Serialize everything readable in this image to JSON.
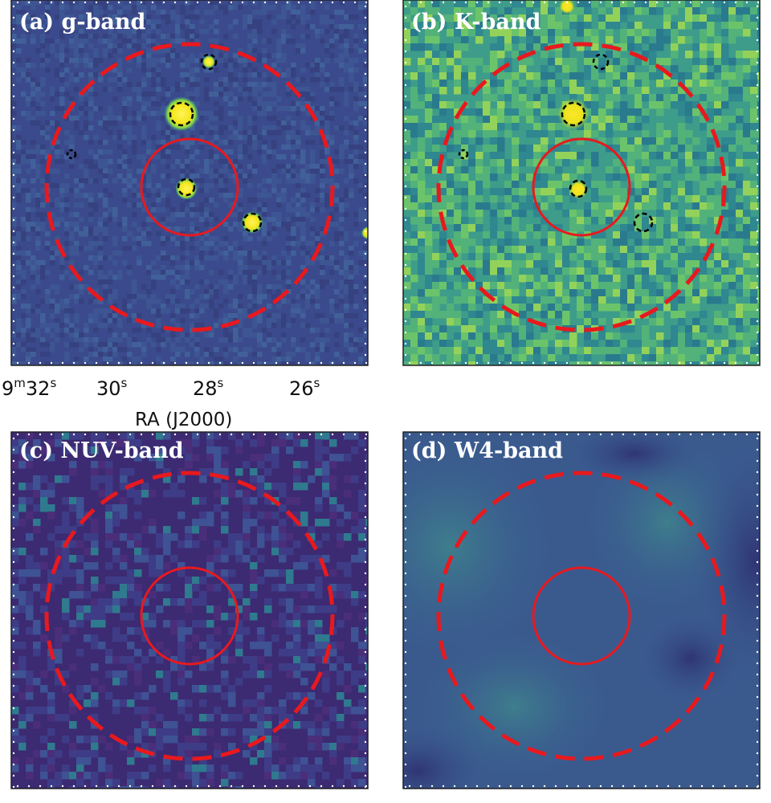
{
  "panels": [
    {
      "id": "a",
      "label": "(a) g-band",
      "bg": "#3b4a8c"
    },
    {
      "id": "b",
      "label": "(b) K-band",
      "bg": "#3e9c8a"
    },
    {
      "id": "c",
      "label": "(c) NUV-band",
      "bg": "#3c2a72"
    },
    {
      "id": "d",
      "label": "(d) W4-band",
      "bg": "#3a5a8e"
    }
  ],
  "ra_axis": {
    "title": "RA (J2000)",
    "ticks": [
      {
        "main": "9",
        "sup1": "m",
        "mid": "32",
        "sup2": "s"
      },
      {
        "main": "30",
        "sup2": "s"
      },
      {
        "main": "28",
        "sup2": "s"
      },
      {
        "main": "26",
        "sup2": "s"
      }
    ]
  },
  "colors": {
    "aperture": "#e8191e",
    "source_mask": "#000000",
    "bright_source": "#f5e61b"
  }
}
